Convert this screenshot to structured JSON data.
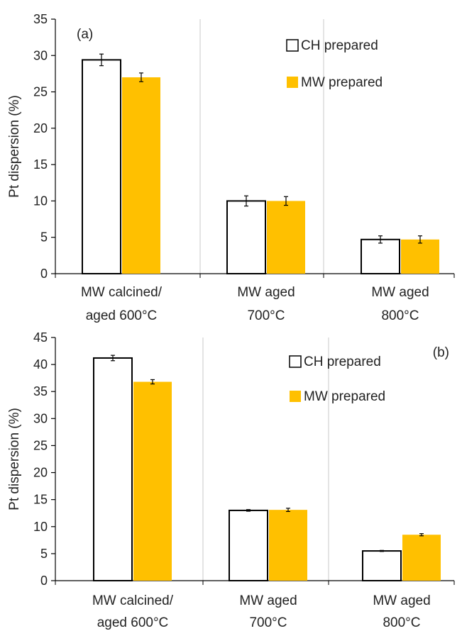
{
  "colors": {
    "ch_fill": "#ffffff",
    "mw_fill": "#ffc000",
    "bar_stroke": "#000000",
    "axis": "#000000",
    "divider": "#c8c8c8"
  },
  "chart_data": [
    {
      "type": "bar",
      "panel_label": "(a)",
      "ylabel": "Pt dispersion (%)",
      "ylim": [
        0,
        35
      ],
      "yticks": [
        0,
        5,
        10,
        15,
        20,
        25,
        30,
        35
      ],
      "categories": [
        [
          "MW calcined/",
          "aged 600°C"
        ],
        [
          "MW aged",
          "700°C"
        ],
        [
          "MW aged",
          "800°C"
        ]
      ],
      "legend_position": "top-right",
      "series": [
        {
          "name": "CH prepared",
          "values": [
            29.4,
            10.0,
            4.7
          ],
          "errors": [
            0.8,
            0.7,
            0.5
          ]
        },
        {
          "name": "MW prepared",
          "values": [
            27.0,
            10.0,
            4.7
          ],
          "errors": [
            0.6,
            0.6,
            0.5
          ]
        }
      ]
    },
    {
      "type": "bar",
      "panel_label": "(b)",
      "ylabel": "Pt dispersion (%)",
      "ylim": [
        0,
        45
      ],
      "yticks": [
        0,
        5,
        10,
        15,
        20,
        25,
        30,
        35,
        40,
        45
      ],
      "categories": [
        [
          "MW calcined/",
          "aged 600°C"
        ],
        [
          "MW aged",
          "700°C"
        ],
        [
          "MW aged",
          "800°C"
        ]
      ],
      "legend_position": "top-right",
      "series": [
        {
          "name": "CH prepared",
          "values": [
            41.2,
            13.0,
            5.5
          ],
          "errors": [
            0.5,
            0.15,
            0.1
          ]
        },
        {
          "name": "MW prepared",
          "values": [
            36.8,
            13.1,
            8.5
          ],
          "errors": [
            0.4,
            0.3,
            0.2
          ]
        }
      ]
    }
  ]
}
